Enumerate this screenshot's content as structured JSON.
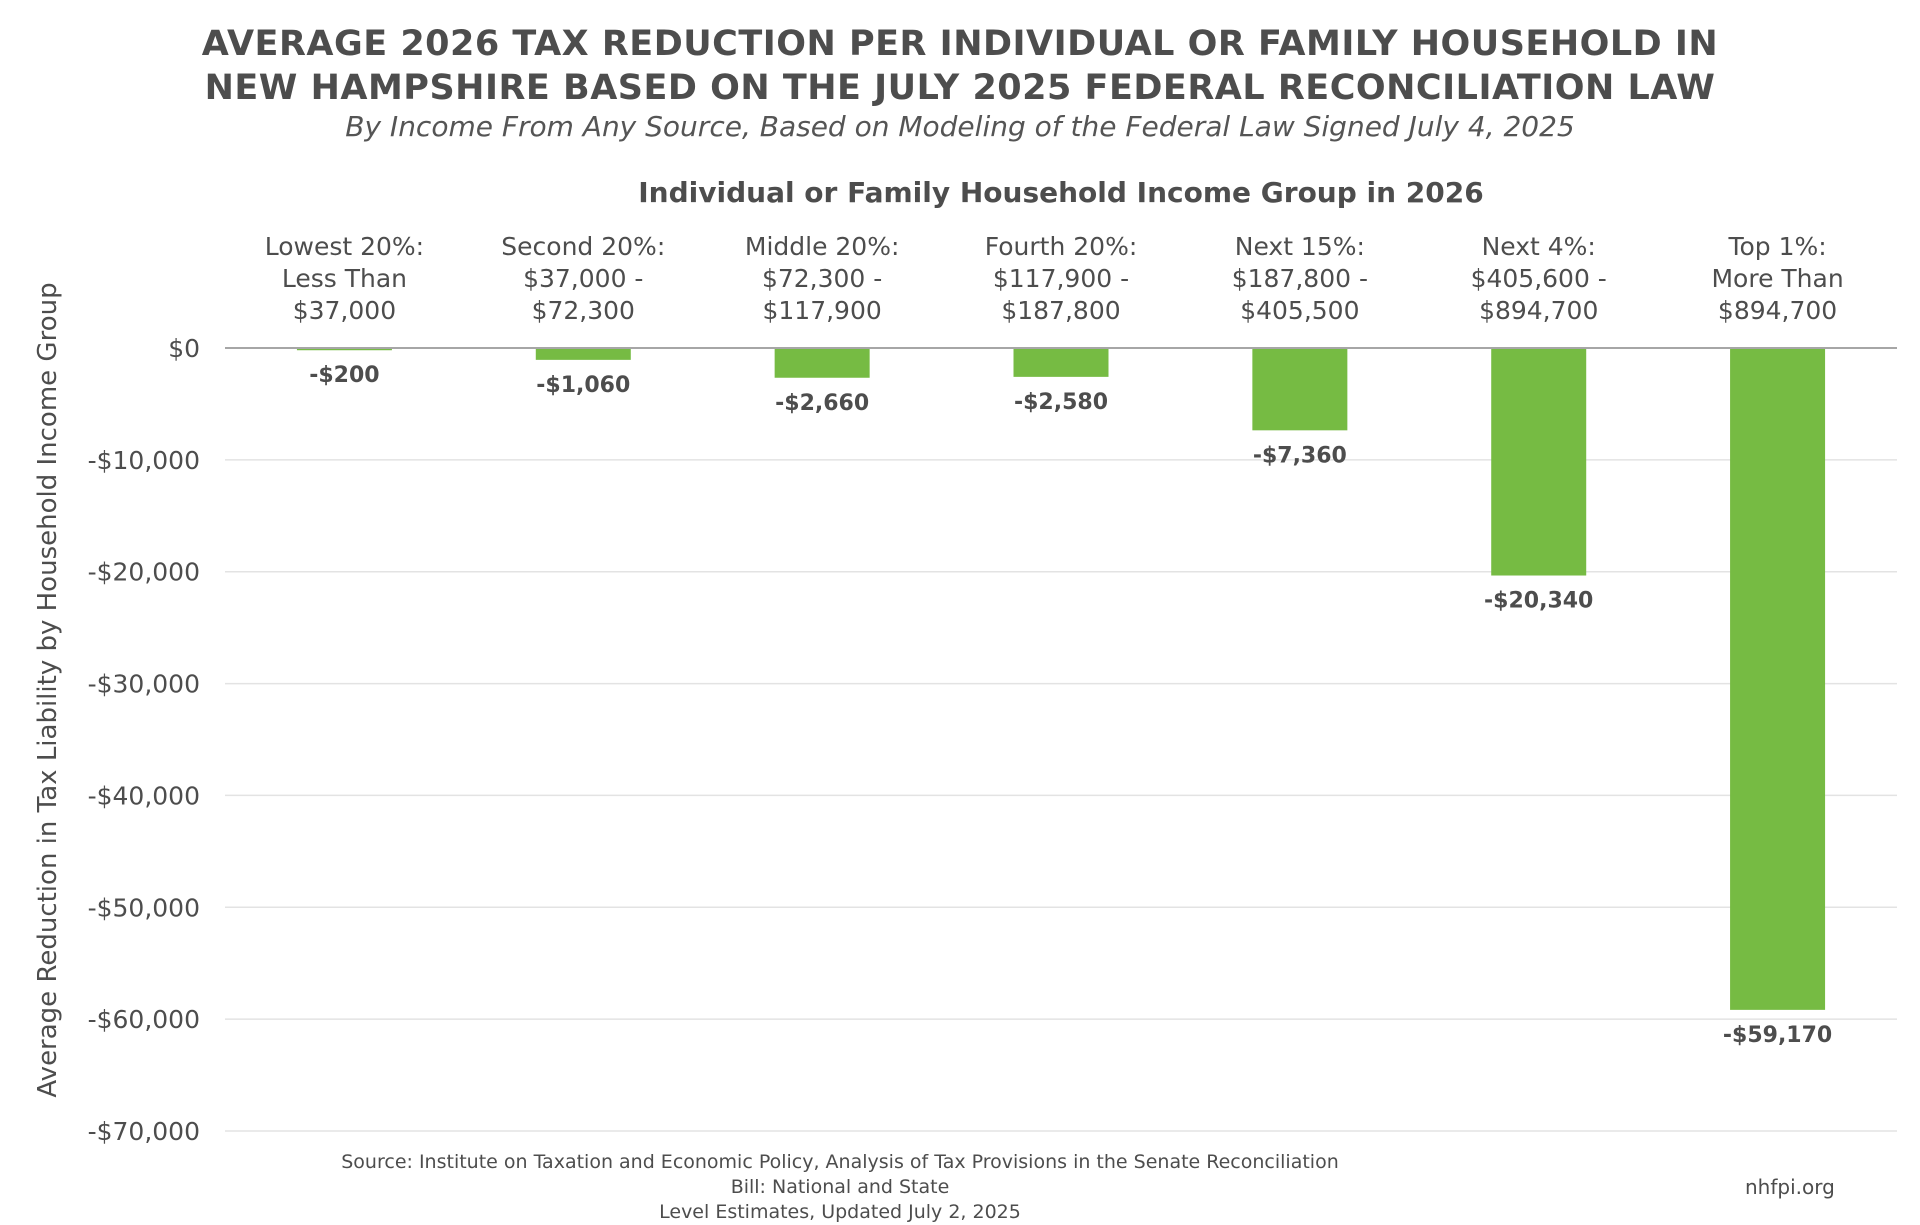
{
  "title_lines": [
    "AVERAGE 2026 TAX REDUCTION PER INDIVIDUAL OR FAMILY HOUSEHOLD IN",
    "NEW HAMPSHIRE BASED ON THE JULY 2025 FEDERAL RECONCILIATION LAW"
  ],
  "subtitle": "By Income From Any Source, Based on Modeling of the Federal Law Signed July 4, 2025",
  "source_lines": [
    "Source: Institute on Taxation and Economic Policy, Analysis of Tax Provisions in the Senate Reconciliation Bill: National and State",
    "Level Estimates, Updated July 2, 2025"
  ],
  "site": "nhfpi.org",
  "chart_data": {
    "type": "bar",
    "xlabel": "Individual or Family Household Income Group in 2026",
    "ylabel": "Average Reduction in Tax Liability by Household Income Group",
    "categories": [
      [
        "Lowest 20%:",
        "Less Than",
        "$37,000"
      ],
      [
        "Second 20%:",
        "$37,000 -",
        "$72,300"
      ],
      [
        "Middle 20%:",
        "$72,300 -",
        "$117,900"
      ],
      [
        "Fourth 20%:",
        "$117,900 -",
        "$187,800"
      ],
      [
        "Next 15%:",
        "$187,800 -",
        "$405,500"
      ],
      [
        "Next 4%:",
        "$405,600 -",
        "$894,700"
      ],
      [
        "Top 1%:",
        "More Than",
        "$894,700"
      ]
    ],
    "values": [
      -200,
      -1060,
      -2660,
      -2580,
      -7360,
      -20340,
      -59170
    ],
    "data_labels": [
      "-$200",
      "-$1,060",
      "-$2,660",
      "-$2,580",
      "-$7,360",
      "-$20,340",
      "-$59,170"
    ],
    "ylim": [
      -70000,
      0
    ],
    "yticks": [
      0,
      -10000,
      -20000,
      -30000,
      -40000,
      -50000,
      -60000,
      -70000
    ],
    "ytick_labels": [
      "$0",
      "-$10,000",
      "-$20,000",
      "-$30,000",
      "-$40,000",
      "-$50,000",
      "-$60,000",
      "-$70,000"
    ],
    "grid": true,
    "bar_color": "#76bb43",
    "grid_color": "#e3e3e3",
    "zero_line_color": "#a6a6a6"
  }
}
